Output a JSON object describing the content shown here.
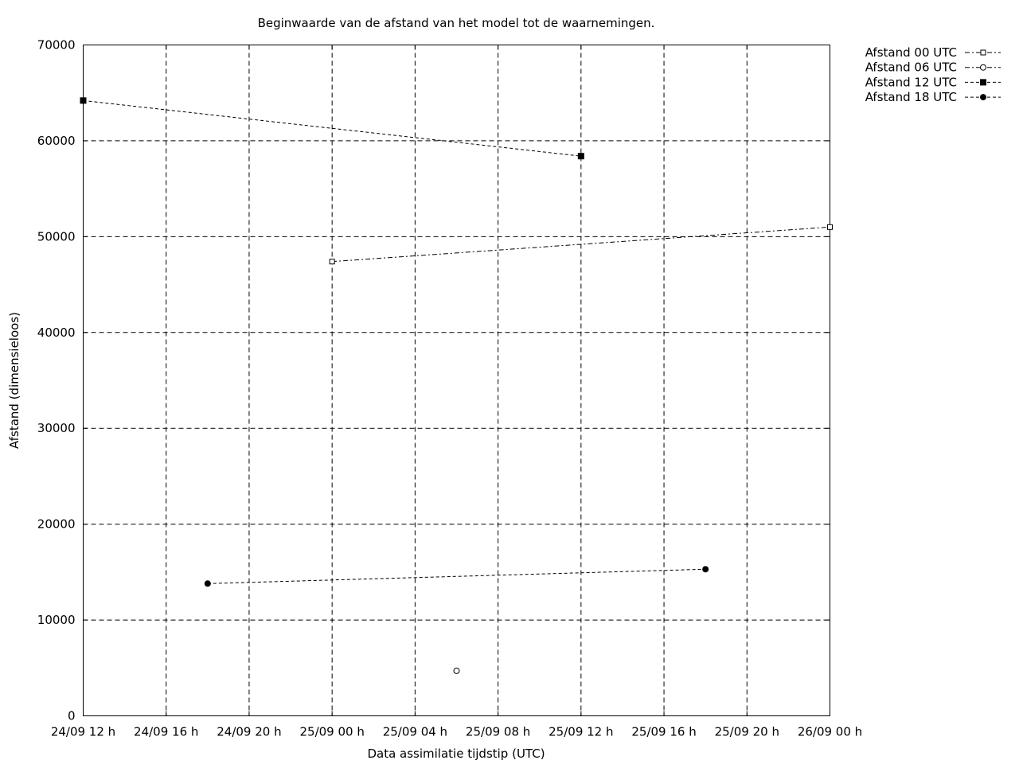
{
  "chart_data": {
    "type": "line",
    "title": "Beginwaarde van de afstand van het model tot de waarnemingen.",
    "xlabel": "Data assimilatie tijdstip (UTC)",
    "ylabel": "Afstand (dimensieloos)",
    "x_hours_range": [
      0,
      36
    ],
    "x_tick_hours": [
      0,
      4,
      8,
      12,
      16,
      20,
      24,
      28,
      32,
      36
    ],
    "x_tick_labels": [
      "24/09 12 h",
      "24/09 16 h",
      "24/09 20 h",
      "25/09 00 h",
      "25/09 04 h",
      "25/09 08 h",
      "25/09 12 h",
      "25/09 16 h",
      "25/09 20 h",
      "26/09 00 h"
    ],
    "ylim": [
      0,
      70000
    ],
    "y_ticks": [
      0,
      10000,
      20000,
      30000,
      40000,
      50000,
      60000,
      70000
    ],
    "y_tick_labels": [
      "0",
      "10000",
      "20000",
      "30000",
      "40000",
      "50000",
      "60000",
      "70000"
    ],
    "grid": true,
    "legend_position": "outside-top-right",
    "series": [
      {
        "name": "Afstand 00 UTC",
        "marker": "open-square",
        "dash": "6,3,2,3",
        "x": [
          "25/09 00 h",
          "26/09 00 h"
        ],
        "x_hours": [
          12,
          36
        ],
        "y": [
          47400,
          51000
        ]
      },
      {
        "name": "Afstand 06 UTC",
        "marker": "open-circle",
        "dash": "6,3,2,3",
        "x": [
          "25/09 06 h"
        ],
        "x_hours": [
          18
        ],
        "y": [
          4700
        ]
      },
      {
        "name": "Afstand 12 UTC",
        "marker": "filled-square",
        "dash": "4,3",
        "x": [
          "24/09 12 h",
          "25/09 12 h"
        ],
        "x_hours": [
          0,
          24
        ],
        "y": [
          64200,
          58400
        ]
      },
      {
        "name": "Afstand 18 UTC",
        "marker": "filled-circle",
        "dash": "4,3",
        "x": [
          "24/09 18 h",
          "25/09 18 h"
        ],
        "x_hours": [
          6,
          30
        ],
        "y": [
          13800,
          15300
        ]
      }
    ]
  }
}
